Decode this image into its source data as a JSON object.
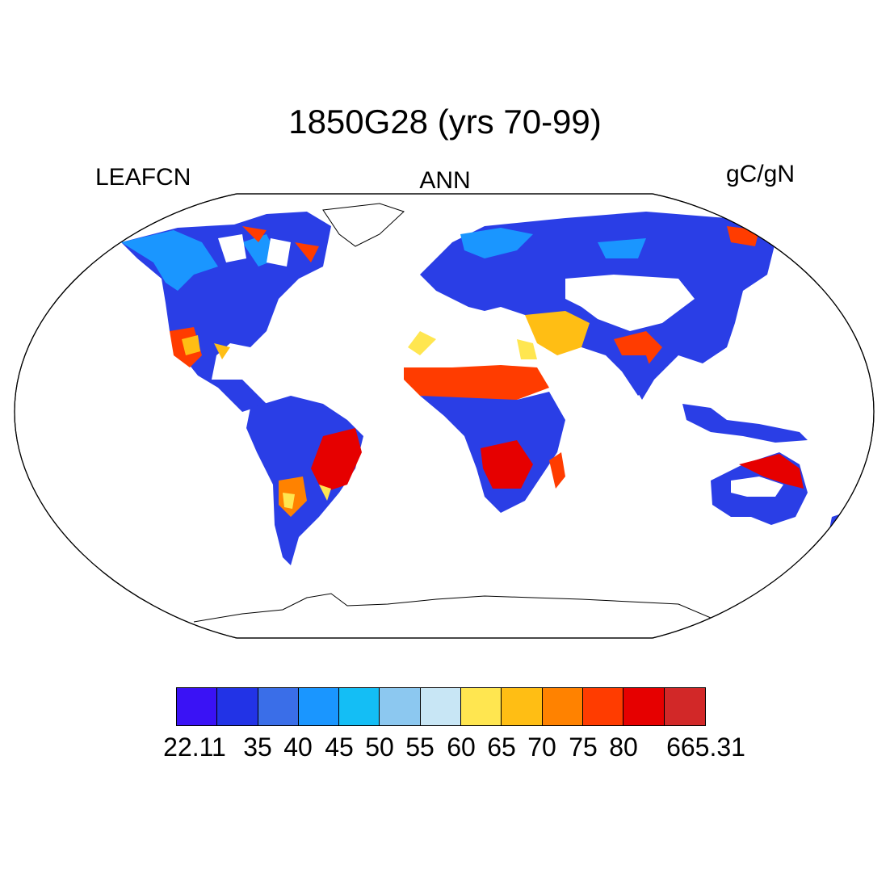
{
  "title": "1850G28 (yrs 70-99)",
  "left_label": "LEAFCN",
  "center_label": "ANN",
  "right_label": "gC/gN",
  "colorbar": {
    "colors": [
      "#3a12f5",
      "#2233e6",
      "#3a6ee8",
      "#1a96ff",
      "#14bef5",
      "#8cc8f0",
      "#c8e6f5",
      "#ffe650",
      "#ffbe14",
      "#ff8200",
      "#ff3c00",
      "#e60000",
      "#d22828"
    ],
    "labels": [
      "22.11",
      "35",
      "40",
      "45",
      "50",
      "55",
      "60",
      "65",
      "70",
      "75",
      "80",
      "665.31"
    ]
  }
}
